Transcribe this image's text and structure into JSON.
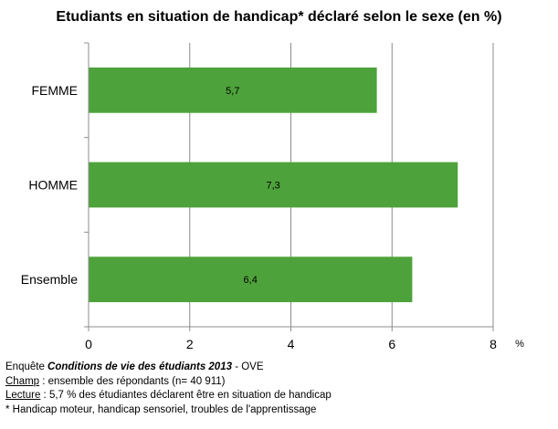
{
  "chart_data": {
    "type": "bar",
    "orientation": "horizontal",
    "title": "Etudiants en situation de handicap* déclaré selon le sexe (en %)",
    "categories": [
      "FEMME",
      "HOMME",
      "Ensemble"
    ],
    "values": [
      5.7,
      7.3,
      6.4
    ],
    "value_labels": [
      "5,7",
      "7,3",
      "6,4"
    ],
    "xlim": [
      0,
      8
    ],
    "x_ticks": [
      0,
      2,
      4,
      6,
      8
    ],
    "x_tick_labels": [
      "0",
      "2",
      "4",
      "6",
      "8"
    ],
    "x_unit": "%",
    "bar_color": "#4ea23b",
    "grid_color": "#8c8c8c",
    "grid": true
  },
  "notes": {
    "line1_prefix": "Enquête ",
    "line1_emph": "Conditions de vie des étudiants 2013",
    "line1_suffix": " - OVE",
    "line2_label": "Champ",
    "line2_text": " : ensemble des répondants (n= 40 911)",
    "line3_label": "Lecture",
    "line3_text": " : 5,7 % des étudiantes déclarent être en situation de handicap",
    "line4_text": "* Handicap moteur, handicap sensoriel, troubles de l'apprentissage"
  }
}
